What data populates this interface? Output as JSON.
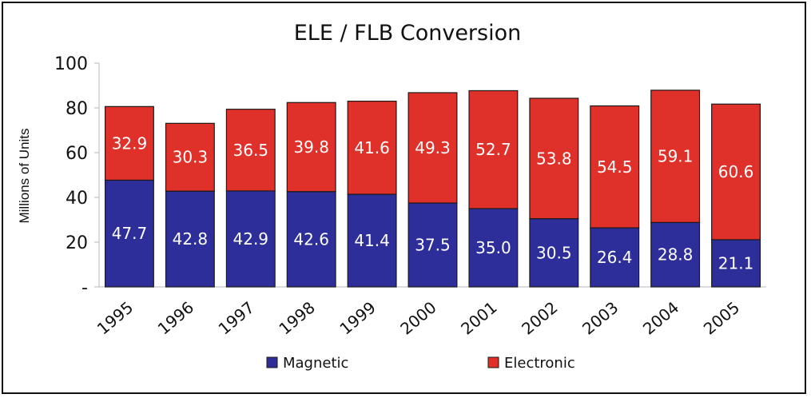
{
  "chart_data": {
    "type": "bar",
    "stacked": true,
    "title": "ELE / FLB Conversion",
    "xlabel": "",
    "ylabel": "Millions of Units",
    "categories": [
      "1995",
      "1996",
      "1997",
      "1998",
      "1999",
      "2000",
      "2001",
      "2002",
      "2003",
      "2004",
      "2005"
    ],
    "series": [
      {
        "name": "Magnetic",
        "color": "#2e2e9a",
        "values": [
          47.7,
          42.8,
          42.9,
          42.6,
          41.4,
          37.5,
          35.0,
          30.5,
          26.4,
          28.8,
          21.1
        ],
        "labels": [
          "47.7",
          "42.8",
          "42.9",
          "42.6",
          "41.4",
          "37.5",
          "35.0",
          "30.5",
          "26.4",
          "28.8",
          "21.1"
        ]
      },
      {
        "name": "Electronic",
        "color": "#e0302a",
        "values": [
          32.9,
          30.3,
          36.5,
          39.8,
          41.6,
          49.3,
          52.7,
          53.8,
          54.5,
          59.1,
          60.6
        ],
        "labels": [
          "32.9",
          "30.3",
          "36.5",
          "39.8",
          "41.6",
          "49.3",
          "52.7",
          "53.8",
          "54.5",
          "59.1",
          "60.6"
        ]
      }
    ],
    "ylim": [
      0,
      100
    ],
    "yticks": [
      0,
      20,
      40,
      60,
      80,
      100
    ],
    "ytick_labels": [
      "-",
      "20",
      "40",
      "60",
      "80",
      "100"
    ],
    "grid": false,
    "legend": "bottom-center"
  }
}
